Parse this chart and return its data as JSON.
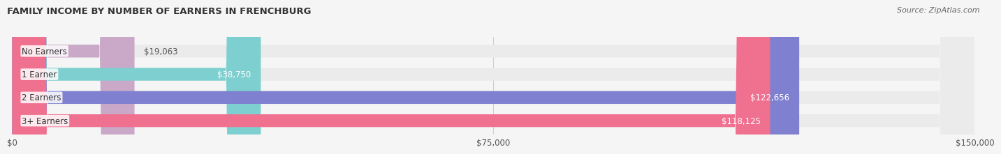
{
  "title": "FAMILY INCOME BY NUMBER OF EARNERS IN FRENCHBURG",
  "source": "Source: ZipAtlas.com",
  "categories": [
    "No Earners",
    "1 Earner",
    "2 Earners",
    "3+ Earners"
  ],
  "values": [
    19063,
    38750,
    122656,
    118125
  ],
  "labels": [
    "$19,063",
    "$38,750",
    "$122,656",
    "$118,125"
  ],
  "bar_colors": [
    "#c9a8c8",
    "#7ecfcf",
    "#8080d0",
    "#f07090"
  ],
  "bar_bg_color": "#ebebeb",
  "background_color": "#f5f5f5",
  "title_fontsize": 9.5,
  "source_fontsize": 8,
  "label_fontsize": 8.5,
  "tick_fontsize": 8.5,
  "xlim": [
    0,
    150000
  ],
  "xticks": [
    0,
    75000,
    150000
  ],
  "xticklabels": [
    "$0",
    "$75,000",
    "$150,000"
  ],
  "bar_height": 0.55,
  "label_color_inside": "#ffffff",
  "label_color_outside": "#555555"
}
